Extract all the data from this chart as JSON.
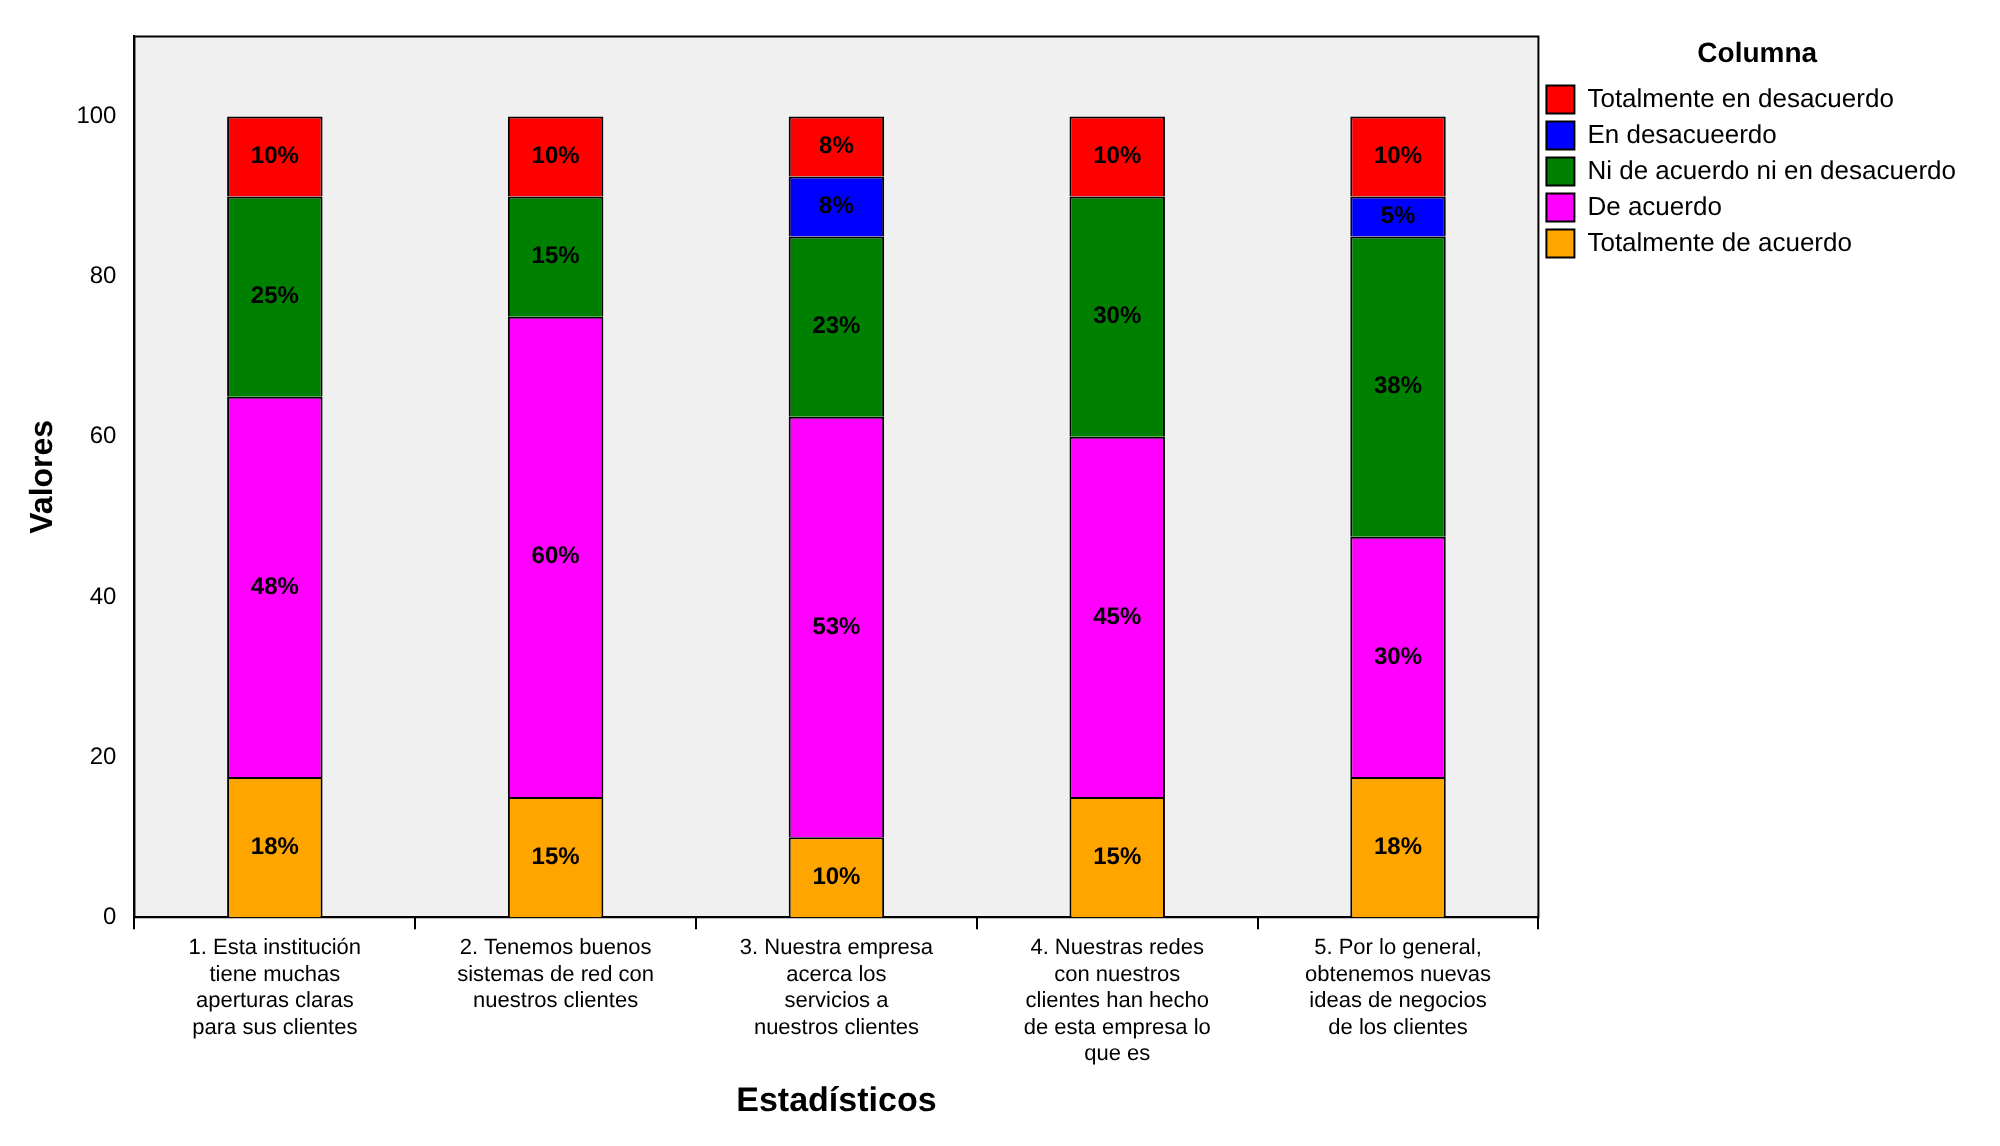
{
  "chart_data": {
    "type": "bar",
    "stacked": true,
    "xlabel": "Estadísticos",
    "ylabel": "Valores",
    "legend_title": "Columna",
    "legend": "top right",
    "categories": [
      "1. Esta institución tiene muchas aperturas claras para sus clientes",
      "2. Tenemos buenos sistemas de red con nuestros clientes",
      "3. Nuestra empresa acerca los servicios a nuestros clientes",
      "4. Nuestras redes con nuestros clientes han hecho de esta empresa lo que es",
      "5. Por lo general, obtenemos nuevas ideas de negocios de los clientes"
    ],
    "series": [
      {
        "name": "Totalmente de acuerdo",
        "color": "#ffa500",
        "values": [
          17.5,
          15,
          10,
          15,
          17.5
        ],
        "value_labels": [
          "18%",
          "15%",
          "10%",
          "15%",
          "18%"
        ]
      },
      {
        "name": "De acuerdo",
        "color": "#ff00ff",
        "values": [
          47.5,
          60,
          52.5,
          45,
          30
        ],
        "value_labels": [
          "48%",
          "60%",
          "53%",
          "45%",
          "30%"
        ]
      },
      {
        "name": "Ni de acuerdo ni en desacuerdo",
        "color": "#008000",
        "values": [
          25,
          15,
          22.5,
          30,
          37.5
        ],
        "value_labels": [
          "25%",
          "15%",
          "23%",
          "30%",
          "38%"
        ]
      },
      {
        "name": "En desacueerdo",
        "color": "#0000ff",
        "values": [
          null,
          null,
          7.5,
          null,
          5
        ],
        "value_labels": [
          null,
          null,
          "8%",
          null,
          "5%"
        ]
      },
      {
        "name": "Totalmente en desacuerdo",
        "color": "#ff0000",
        "values": [
          10,
          10,
          7.5,
          10,
          10
        ],
        "value_labels": [
          "10%",
          "10%",
          "8%",
          "10%",
          "10%"
        ]
      }
    ],
    "ylim": [
      0,
      110
    ],
    "yticks": [
      0,
      20,
      40,
      60,
      80,
      100
    ],
    "grid": false
  }
}
